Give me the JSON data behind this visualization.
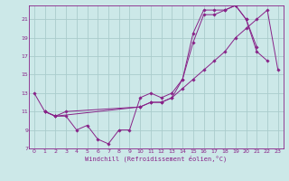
{
  "title": "",
  "xlabel": "Windchill (Refroidissement éolien,°C)",
  "bg_color": "#cce8e8",
  "grid_color": "#aacccc",
  "line_color": "#882288",
  "xlim": [
    -0.5,
    23.5
  ],
  "ylim": [
    7,
    22.5
  ],
  "xticks": [
    0,
    1,
    2,
    3,
    4,
    5,
    6,
    7,
    8,
    9,
    10,
    11,
    12,
    13,
    14,
    15,
    16,
    17,
    18,
    19,
    20,
    21,
    22,
    23
  ],
  "yticks": [
    7,
    9,
    11,
    13,
    15,
    17,
    19,
    21
  ],
  "series": [
    {
      "x": [
        0,
        1,
        2,
        3,
        4,
        5,
        6,
        7,
        8,
        9,
        10,
        11,
        12,
        13,
        14,
        15,
        16,
        17,
        18,
        19,
        20,
        21
      ],
      "y": [
        13,
        11,
        10.5,
        10.5,
        9.0,
        9.5,
        8.0,
        7.5,
        9.0,
        9.0,
        12.5,
        13.0,
        12.5,
        13.0,
        14.5,
        19.5,
        22.0,
        22.0,
        22.0,
        22.5,
        21.0,
        18.0
      ]
    },
    {
      "x": [
        1,
        2,
        3,
        10,
        11,
        12,
        13,
        14,
        15,
        16,
        17,
        18,
        19,
        20,
        21,
        22,
        23
      ],
      "y": [
        11,
        10.5,
        11.0,
        11.5,
        12.0,
        12.0,
        12.5,
        13.5,
        14.5,
        15.5,
        16.5,
        17.5,
        19.0,
        20.0,
        21.0,
        22.0,
        15.5
      ]
    },
    {
      "x": [
        1,
        2,
        10,
        11,
        12,
        13,
        14,
        15,
        16,
        17,
        18,
        19,
        20,
        21,
        22
      ],
      "y": [
        11,
        10.5,
        11.5,
        12.0,
        12.0,
        12.5,
        14.5,
        18.5,
        21.5,
        21.5,
        22.0,
        22.5,
        21.0,
        17.5,
        16.5
      ]
    }
  ]
}
